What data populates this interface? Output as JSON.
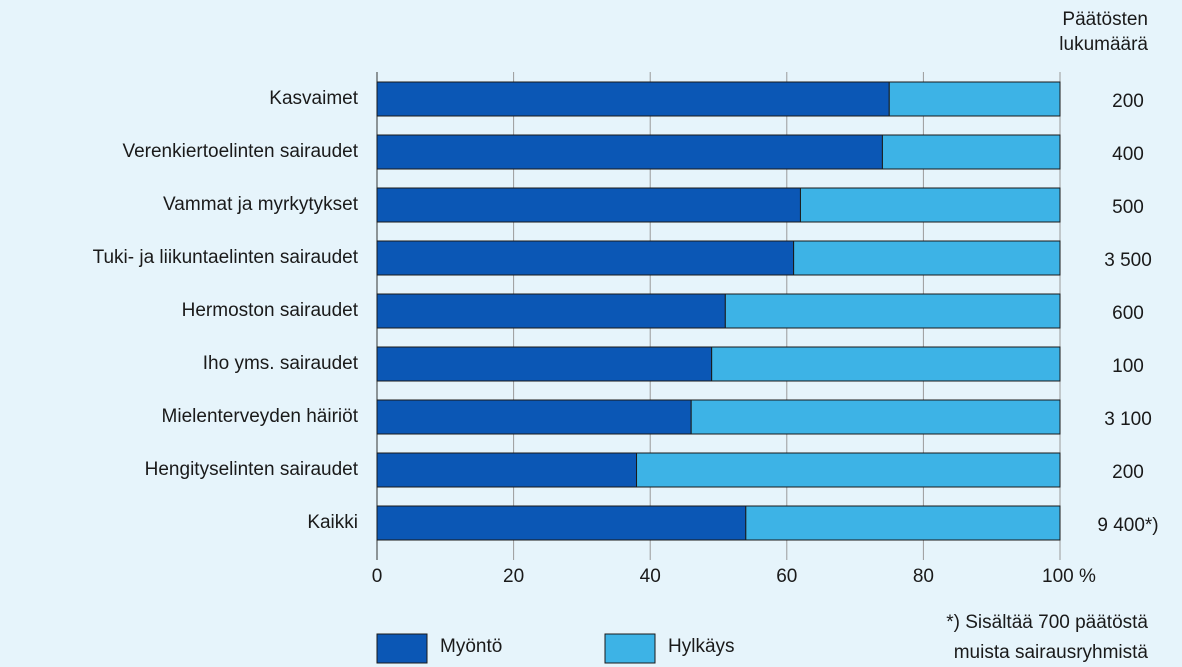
{
  "chart_data": {
    "type": "stacked_barh",
    "categories": [
      "Kasvaimet",
      "Verenkiertoelinten sairaudet",
      "Vammat ja myrkytykset",
      "Tuki- ja liikuntaelinten sairaudet",
      "Hermoston sairaudet",
      "Iho yms. sairaudet",
      "Mielenterveyden häiriöt",
      "Hengityselinten sairaudet",
      "Kaikki"
    ],
    "series": [
      {
        "name": "Myöntö",
        "color": "#0b57b5",
        "values": [
          75,
          74,
          62,
          61,
          51,
          49,
          46,
          38,
          54
        ]
      },
      {
        "name": "Hylkäys",
        "color": "#3db3e6",
        "values": [
          25,
          26,
          38,
          39,
          49,
          51,
          54,
          62,
          46
        ]
      }
    ],
    "xlim": [
      0,
      100
    ],
    "xticks": [
      0,
      20,
      40,
      60,
      80,
      {
        "value": 100,
        "label": "100 %"
      }
    ],
    "grid": true,
    "count_header": [
      "Päätösten",
      "lukumäärä"
    ],
    "counts": [
      "200",
      "400",
      "500",
      "3 500",
      "600",
      "100",
      "3 100",
      "200",
      "9 400*)"
    ],
    "footnote": [
      "*) Sisältää 700 päätöstä",
      "muista sairausryhmistä"
    ]
  }
}
